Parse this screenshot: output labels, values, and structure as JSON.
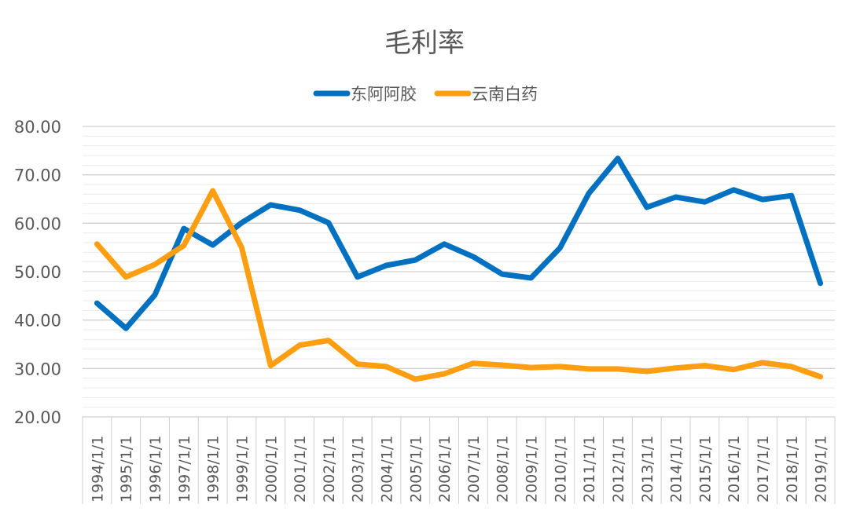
{
  "chart_data": {
    "type": "line",
    "title": "毛利率",
    "xlabel": "",
    "ylabel": "",
    "ylim": [
      20,
      80
    ],
    "yticks": [
      "20.00",
      "30.00",
      "40.00",
      "50.00",
      "60.00",
      "70.00",
      "80.00"
    ],
    "grid": true,
    "legend_position": "top-center",
    "categories": [
      "1994/1/1",
      "1995/1/1",
      "1996/1/1",
      "1997/1/1",
      "1998/1/1",
      "1999/1/1",
      "2000/1/1",
      "2001/1/1",
      "2002/1/1",
      "2003/1/1",
      "2004/1/1",
      "2005/1/1",
      "2006/1/1",
      "2007/1/1",
      "2008/1/1",
      "2009/1/1",
      "2010/1/1",
      "2011/1/1",
      "2012/1/1",
      "2013/1/1",
      "2014/1/1",
      "2015/1/1",
      "2016/1/1",
      "2017/1/1",
      "2018/1/1",
      "2019/1/1"
    ],
    "series": [
      {
        "name": "东阿阿胶",
        "color": "#0070C0",
        "values": [
          43.5,
          38.3,
          45.2,
          58.9,
          55.5,
          60.1,
          63.8,
          62.7,
          60.1,
          48.9,
          51.3,
          52.4,
          55.7,
          53.1,
          49.5,
          48.7,
          54.9,
          66.2,
          73.4,
          63.3,
          65.4,
          64.4,
          66.9,
          64.9,
          65.7,
          47.6
        ]
      },
      {
        "name": "云南白药",
        "color": "#FF9E10",
        "values": [
          55.7,
          48.9,
          51.5,
          55.4,
          66.7,
          55.0,
          30.6,
          34.8,
          35.8,
          30.9,
          30.4,
          27.8,
          28.9,
          31.1,
          30.7,
          30.2,
          30.4,
          29.9,
          29.9,
          29.4,
          30.1,
          30.6,
          29.8,
          31.2,
          30.4,
          28.3
        ]
      }
    ]
  }
}
